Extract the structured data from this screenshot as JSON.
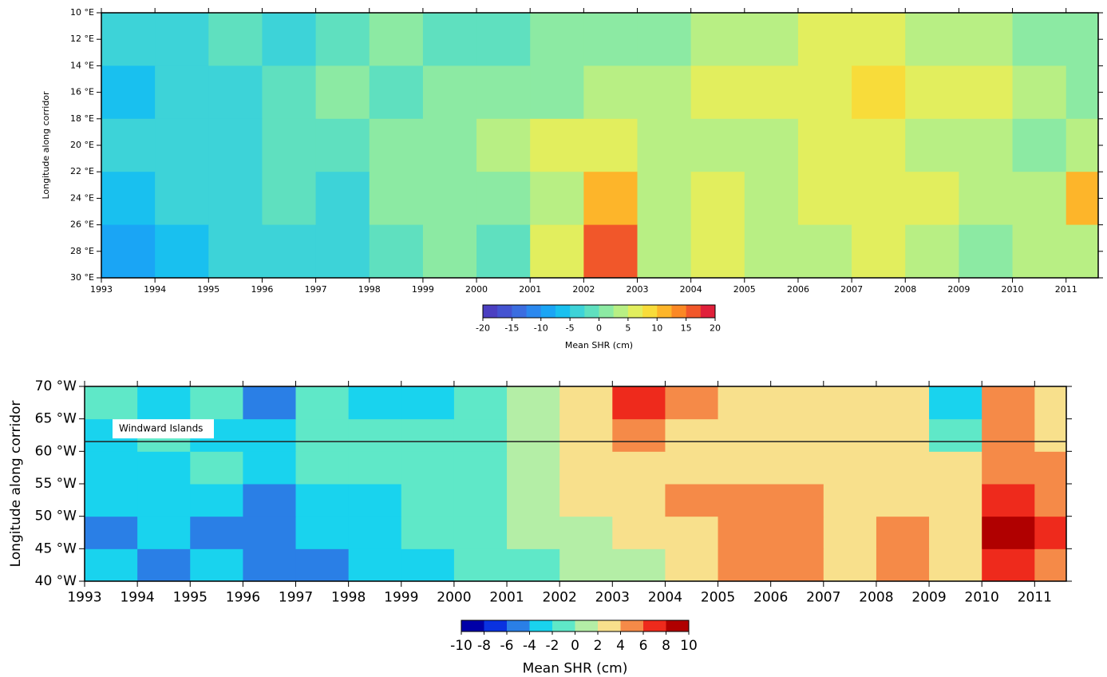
{
  "chart_data": [
    {
      "type": "heatmap",
      "y_label": "Longitude along corridor",
      "x": [
        1993,
        1994,
        1995,
        1996,
        1997,
        1998,
        1999,
        2000,
        2001,
        2002,
        2003,
        2004,
        2005,
        2006,
        2007,
        2008,
        2009,
        2010,
        2011
      ],
      "xlim": [
        1993,
        2011.6
      ],
      "xticks": [
        1993,
        1994,
        1995,
        1996,
        1997,
        1998,
        1999,
        2000,
        2001,
        2002,
        2003,
        2004,
        2005,
        2006,
        2007,
        2008,
        2009,
        2010,
        2011
      ],
      "y_bins": [
        10,
        14,
        18,
        22,
        26,
        30
      ],
      "ylim": [
        30,
        10
      ],
      "yticks": [
        {
          "value": 10,
          "label": "10 °E"
        },
        {
          "value": 12,
          "label": "12 °E"
        },
        {
          "value": 14,
          "label": "14 °E"
        },
        {
          "value": 16,
          "label": "16 °E"
        },
        {
          "value": 18,
          "label": "18 °E"
        },
        {
          "value": 20,
          "label": "20 °E"
        },
        {
          "value": 22,
          "label": "22 °E"
        },
        {
          "value": 24,
          "label": "24 °E"
        },
        {
          "value": 26,
          "label": "26 °E"
        },
        {
          "value": 28,
          "label": "28 °E"
        },
        {
          "value": 30,
          "label": "30 °E"
        }
      ],
      "z": [
        [
          -4,
          -3,
          -2,
          -3,
          -1,
          0,
          -2,
          -1,
          1,
          2,
          1,
          3,
          4,
          6,
          5,
          4,
          3,
          2,
          1
        ],
        [
          -6,
          -5,
          -3,
          -2,
          0,
          -1,
          1,
          2,
          2,
          3,
          4,
          5,
          6,
          7,
          8,
          5,
          6,
          3,
          2
        ],
        [
          -5,
          -4,
          -3,
          -2,
          -1,
          1,
          2,
          3,
          5,
          6,
          3,
          4,
          3,
          5,
          6,
          4,
          3,
          2,
          4
        ],
        [
          -7,
          -5,
          -4,
          -2,
          -3,
          0,
          1,
          2,
          4,
          12,
          3,
          6,
          4,
          7,
          5,
          6,
          4,
          3,
          10
        ],
        [
          -8,
          -6,
          -5,
          -4,
          -3,
          -2,
          0,
          -1,
          6,
          15,
          4,
          5,
          3,
          4,
          5,
          3,
          2,
          3,
          4
        ]
      ],
      "colorbar": {
        "label": "Mean SHR (cm)",
        "lim": [
          -20,
          20
        ],
        "ticks": [
          -20,
          -15,
          -10,
          -5,
          0,
          5,
          10,
          15,
          20
        ],
        "colors": [
          "#4b3fc1",
          "#4453d1",
          "#3b6de0",
          "#2b88ee",
          "#1aa5f5",
          "#19c0ef",
          "#3dd3d8",
          "#5fe0bf",
          "#8ceaa3",
          "#b8ef84",
          "#e2ee5e",
          "#f8dc3a",
          "#fdb52a",
          "#fb8824",
          "#f1572a",
          "#e0203a"
        ]
      }
    },
    {
      "type": "heatmap",
      "y_label": "Longitude along corridor",
      "x": [
        1993,
        1994,
        1995,
        1996,
        1997,
        1998,
        1999,
        2000,
        2001,
        2002,
        2003,
        2004,
        2005,
        2006,
        2007,
        2008,
        2009,
        2010,
        2011
      ],
      "xlim": [
        1993,
        2011.6
      ],
      "xticks": [
        1993,
        1994,
        1995,
        1996,
        1997,
        1998,
        1999,
        2000,
        2001,
        2002,
        2003,
        2004,
        2005,
        2006,
        2007,
        2008,
        2009,
        2010,
        2011
      ],
      "y_bins": [
        40,
        45,
        50,
        55,
        60,
        65,
        70
      ],
      "ylim": [
        40,
        70
      ],
      "yticks": [
        {
          "value": 40,
          "label": "40 °W"
        },
        {
          "value": 45,
          "label": "45 °W"
        },
        {
          "value": 50,
          "label": "50 °W"
        },
        {
          "value": 55,
          "label": "55 °W"
        },
        {
          "value": 60,
          "label": "60 °W"
        },
        {
          "value": 65,
          "label": "65 °W"
        },
        {
          "value": 70,
          "label": "70 °W"
        }
      ],
      "z": [
        [
          -4,
          -5,
          -3,
          -6,
          -5,
          -4,
          -3,
          -2,
          -1,
          0,
          1,
          2,
          4,
          5,
          3,
          4,
          3,
          6,
          5
        ],
        [
          -5,
          -4,
          -5,
          -6,
          -4,
          -3,
          -2,
          -2,
          0,
          1,
          2,
          3,
          5,
          4,
          3,
          4,
          2,
          8,
          6
        ],
        [
          -4,
          -3,
          -4,
          -5,
          -3,
          -3,
          -2,
          -1,
          1,
          2,
          3,
          4,
          5,
          4,
          3,
          3,
          2,
          7,
          5
        ],
        [
          -3,
          -3,
          -2,
          -4,
          -2,
          -2,
          -1,
          -1,
          0,
          2,
          2,
          3,
          3,
          3,
          2,
          3,
          2,
          5,
          4
        ],
        [
          -3,
          -2,
          -3,
          -4,
          -2,
          -2,
          -1,
          -1,
          0,
          2,
          5,
          3,
          2,
          3,
          2,
          3,
          -2,
          5,
          3
        ],
        [
          -2,
          -3,
          -2,
          -5,
          -2,
          -3,
          -3,
          -2,
          1,
          3,
          7,
          4,
          3,
          3,
          2,
          2,
          -4,
          4,
          3
        ]
      ],
      "annotation": {
        "text": "Windward Islands",
        "y": 61.5
      },
      "colorbar": {
        "label": "Mean SHR (cm)",
        "lim": [
          -10,
          10
        ],
        "ticks": [
          -10,
          -8,
          -6,
          -4,
          -2,
          0,
          2,
          4,
          6,
          8,
          10
        ],
        "colors": [
          "#0000a8",
          "#0a32e0",
          "#2a7fe6",
          "#19d3ee",
          "#5fe8c8",
          "#b4eea6",
          "#f8e08c",
          "#f58a48",
          "#ee2a1c",
          "#b00000"
        ]
      }
    }
  ]
}
